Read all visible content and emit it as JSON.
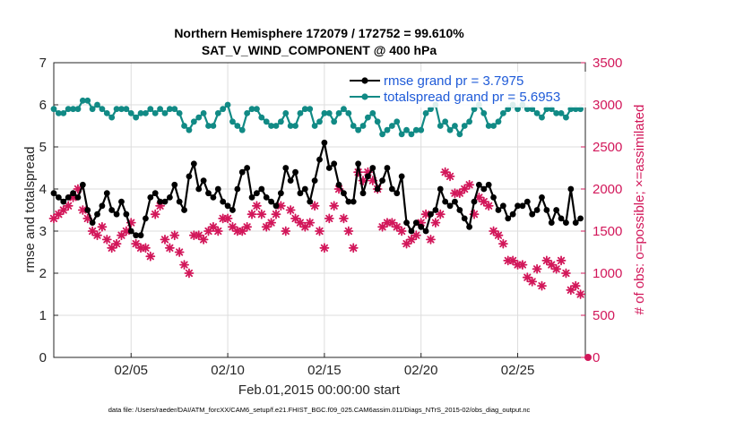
{
  "chart_data": {
    "type": "line",
    "title_line1": "Northern Hemisphere 172079 / 172752 = 99.610%",
    "title_line2": "SAT_V_WIND_COMPONENT @ 400 hPa",
    "xlabel": "Feb.01,2015 00:00:00 start",
    "ylabel_left": "rmse and totalspread",
    "ylabel_right": "# of obs: o=possible; ×=assimilated",
    "x_unit": "days since Feb.01,2015 00:00:00",
    "xlim": [
      1.0,
      28.5
    ],
    "ylim_left": [
      0,
      7
    ],
    "ylim_right": [
      0,
      3500
    ],
    "x_ticks": [
      5,
      10,
      15,
      20,
      25
    ],
    "x_tick_labels": [
      "02/05",
      "02/10",
      "02/15",
      "02/20",
      "02/25"
    ],
    "y_ticks_left": [
      "0",
      "1",
      "2",
      "3",
      "4",
      "5",
      "6",
      "7"
    ],
    "y_ticks_right": [
      "0",
      "500",
      "1000",
      "1500",
      "2000",
      "2500",
      "3000",
      "3500"
    ],
    "grid": true,
    "legend_position": "top-right",
    "colors": {
      "rmse": "#000000",
      "totalspread": "#118a85",
      "obs": "#d2175a",
      "legend_text": "#1f5bd8",
      "grid": "#dddddd"
    },
    "x": [
      1.0,
      1.25,
      1.5,
      1.75,
      2.0,
      2.25,
      2.5,
      2.75,
      3.0,
      3.25,
      3.5,
      3.75,
      4.0,
      4.25,
      4.5,
      4.75,
      5.0,
      5.25,
      5.5,
      5.75,
      6.0,
      6.25,
      6.5,
      6.75,
      7.0,
      7.25,
      7.5,
      7.75,
      8.0,
      8.25,
      8.5,
      8.75,
      9.0,
      9.25,
      9.5,
      9.75,
      10.0,
      10.25,
      10.5,
      10.75,
      11.0,
      11.25,
      11.5,
      11.75,
      12.0,
      12.25,
      12.5,
      12.75,
      13.0,
      13.25,
      13.5,
      13.75,
      14.0,
      14.25,
      14.5,
      14.75,
      15.0,
      15.25,
      15.5,
      15.75,
      16.0,
      16.25,
      16.5,
      16.75,
      17.0,
      17.25,
      17.5,
      17.75,
      18.0,
      18.25,
      18.5,
      18.75,
      19.0,
      19.25,
      19.5,
      19.75,
      20.0,
      20.25,
      20.5,
      20.75,
      21.0,
      21.25,
      21.5,
      21.75,
      22.0,
      22.25,
      22.5,
      22.75,
      23.0,
      23.25,
      23.5,
      23.75,
      24.0,
      24.25,
      24.5,
      24.75,
      25.0,
      25.25,
      25.5,
      25.75,
      26.0,
      26.25,
      26.5,
      26.75,
      27.0,
      27.25,
      27.5,
      27.75,
      28.0,
      28.25
    ],
    "series": [
      {
        "name": "rmse grand pr = 3.7975",
        "axis": "left",
        "marker": "filled-circle-line",
        "values": [
          3.9,
          3.8,
          3.7,
          3.8,
          3.9,
          3.8,
          4.1,
          3.5,
          3.2,
          3.4,
          3.6,
          3.9,
          3.5,
          3.4,
          3.7,
          3.4,
          3.0,
          2.9,
          2.9,
          3.3,
          3.8,
          3.9,
          3.7,
          3.7,
          3.8,
          4.1,
          3.7,
          3.5,
          4.3,
          4.6,
          4.0,
          4.2,
          3.9,
          3.8,
          4.0,
          3.7,
          3.6,
          3.5,
          4.0,
          4.4,
          4.5,
          3.8,
          3.9,
          4.0,
          3.8,
          3.7,
          3.6,
          3.9,
          4.5,
          4.2,
          4.4,
          3.9,
          4.0,
          3.7,
          4.2,
          4.7,
          5.1,
          4.5,
          4.6,
          4.1,
          3.9,
          3.7,
          3.7,
          4.6,
          3.9,
          4.3,
          4.5,
          4.0,
          4.2,
          4.5,
          4.0,
          3.9,
          4.3,
          3.2,
          3.0,
          3.2,
          3.1,
          3.0,
          3.4,
          3.5,
          4.0,
          3.7,
          3.6,
          3.7,
          3.5,
          3.3,
          3.1,
          3.7,
          4.1,
          4.0,
          4.1,
          3.8,
          3.5,
          3.6,
          3.3,
          3.4,
          3.6,
          3.6,
          3.7,
          3.4,
          3.5,
          3.8,
          3.5,
          3.2,
          3.5,
          3.3,
          3.2,
          4.0,
          3.2,
          3.3
        ]
      },
      {
        "name": "totalspread grand pr = 5.6953",
        "axis": "left",
        "marker": "filled-circle-line",
        "values": [
          5.9,
          5.8,
          5.8,
          5.9,
          5.9,
          5.9,
          6.1,
          6.1,
          5.9,
          6.0,
          5.9,
          5.8,
          5.7,
          5.9,
          5.9,
          5.9,
          5.8,
          5.7,
          5.8,
          5.8,
          5.9,
          5.8,
          5.9,
          5.8,
          5.9,
          5.9,
          5.8,
          5.5,
          5.4,
          5.6,
          5.7,
          5.8,
          5.5,
          5.5,
          5.8,
          5.9,
          6.0,
          5.6,
          5.5,
          5.4,
          5.8,
          5.9,
          5.9,
          5.7,
          5.6,
          5.5,
          5.5,
          5.6,
          5.8,
          5.5,
          5.5,
          5.8,
          5.9,
          5.9,
          5.5,
          5.6,
          5.8,
          5.8,
          5.6,
          5.8,
          5.9,
          5.8,
          5.5,
          5.4,
          5.5,
          5.7,
          5.8,
          5.6,
          5.3,
          5.4,
          5.5,
          5.6,
          5.3,
          5.4,
          5.3,
          5.4,
          5.4,
          5.8,
          5.9,
          6.0,
          5.5,
          5.6,
          5.4,
          5.5,
          5.3,
          5.5,
          5.6,
          5.9,
          6.0,
          5.8,
          5.5,
          5.5,
          5.6,
          5.8,
          5.9,
          6.0,
          5.9,
          6.0,
          5.9,
          5.9,
          5.8,
          5.7,
          5.9,
          5.9,
          5.8,
          5.8,
          5.7,
          5.9,
          5.9,
          5.9
        ]
      },
      {
        "name": "observations",
        "axis": "right",
        "marker": "asterisk",
        "values": [
          1650,
          1700,
          1750,
          1800,
          1900,
          2000,
          1750,
          1650,
          1500,
          1450,
          1550,
          1400,
          1300,
          1350,
          1450,
          1500,
          1600,
          1350,
          1300,
          1300,
          1200,
          1700,
          1800,
          1400,
          1300,
          1450,
          1250,
          1100,
          1000,
          1450,
          1450,
          1400,
          1500,
          1550,
          1500,
          1650,
          1650,
          1550,
          1500,
          1500,
          1550,
          1700,
          1800,
          1700,
          1550,
          1600,
          1700,
          1800,
          1500,
          1750,
          1650,
          1600,
          1550,
          1600,
          1800,
          1500,
          1300,
          1650,
          1800,
          2000,
          1650,
          1500,
          1300,
          2200,
          2100,
          2200,
          2100,
          2000,
          1550,
          1600,
          1600,
          1550,
          1500,
          1350,
          1400,
          1450,
          1600,
          1700,
          1400,
          1600,
          1700,
          2200,
          2150,
          1950,
          1950,
          2000,
          2050,
          1700,
          1900,
          1850,
          1800,
          1500,
          1450,
          1350,
          1150,
          1150,
          1100,
          1100,
          950,
          900,
          1050,
          850,
          1150,
          1100,
          1050,
          1150,
          1000,
          800,
          850,
          750
        ]
      }
    ]
  },
  "footnote": "data file: /Users/raeder/DAI/ATM_forcXX/CAM6_setup/f.e21.FHIST_BGC.f09_025.CAM6assim.011/Diags_NTrS_2015-02/obs_diag_output.nc"
}
